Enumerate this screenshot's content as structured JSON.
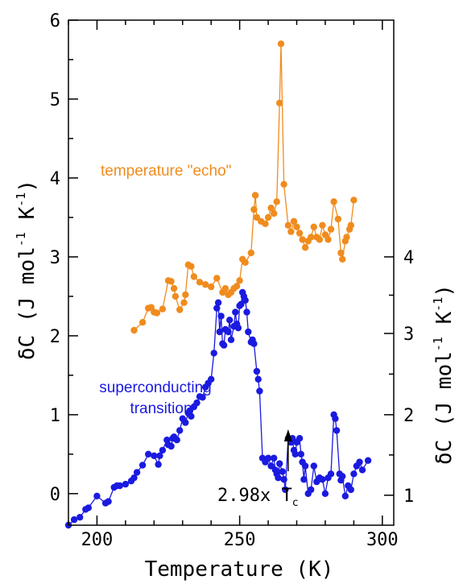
{
  "chart_data": {
    "type": "scatter",
    "title": "",
    "xlabel": "Temperature (K)",
    "ylabel_left": "δC (J mol-1 K-1)",
    "ylabel_right": "δC (J mol-1 K-1)",
    "xlim": [
      190,
      304
    ],
    "ylim_left": [
      -0.4,
      6.0
    ],
    "ylim_right_ticks": [
      {
        "label": "1",
        "left_value": -0.02
      },
      {
        "label": "2",
        "left_value": 1.0
      },
      {
        "label": "3",
        "left_value": 2.03
      },
      {
        "label": "4",
        "left_value": 3.0
      }
    ],
    "x_ticks": [
      200,
      250,
      300
    ],
    "y_ticks": [
      0,
      1,
      2,
      3,
      4,
      5,
      6
    ],
    "annotations": {
      "echo_label": "temperature \"echo\"",
      "sc_label_line1": "superconducting",
      "sc_label_line2": "transition",
      "tc_label": "2.98x T",
      "tc_sub": "c",
      "arrow_x": 267
    },
    "colors": {
      "echo": "#f08c1e",
      "superconducting": "#1a1ae0"
    },
    "series": [
      {
        "name": "temperature \"echo\"",
        "color": "#f08c1e",
        "points": [
          [
            213,
            2.07
          ],
          [
            216,
            2.17
          ],
          [
            218,
            2.35
          ],
          [
            219,
            2.36
          ],
          [
            220,
            2.3
          ],
          [
            221,
            2.29
          ],
          [
            223,
            2.34
          ],
          [
            225,
            2.7
          ],
          [
            226,
            2.69
          ],
          [
            227,
            2.6
          ],
          [
            227.5,
            2.5
          ],
          [
            229,
            2.33
          ],
          [
            230.5,
            2.42
          ],
          [
            231,
            2.52
          ],
          [
            232,
            2.9
          ],
          [
            233,
            2.88
          ],
          [
            234,
            2.75
          ],
          [
            236,
            2.68
          ],
          [
            238,
            2.65
          ],
          [
            240,
            2.62
          ],
          [
            242,
            2.73
          ],
          [
            244,
            2.55
          ],
          [
            245,
            2.6
          ],
          [
            246,
            2.52
          ],
          [
            247,
            2.55
          ],
          [
            248,
            2.6
          ],
          [
            249,
            2.63
          ],
          [
            250,
            2.7
          ],
          [
            251,
            2.97
          ],
          [
            252,
            2.93
          ],
          [
            254,
            3.05
          ],
          [
            255,
            3.6
          ],
          [
            255.5,
            3.78
          ],
          [
            256,
            3.5
          ],
          [
            257.5,
            3.45
          ],
          [
            259,
            3.42
          ],
          [
            260,
            3.5
          ],
          [
            261,
            3.62
          ],
          [
            262,
            3.55
          ],
          [
            263,
            3.7
          ],
          [
            264,
            4.95
          ],
          [
            264.5,
            5.7
          ],
          [
            265.5,
            3.92
          ],
          [
            267,
            3.4
          ],
          [
            268,
            3.32
          ],
          [
            269,
            3.45
          ],
          [
            270,
            3.38
          ],
          [
            271,
            3.3
          ],
          [
            272,
            3.22
          ],
          [
            273,
            3.12
          ],
          [
            274,
            3.2
          ],
          [
            275,
            3.25
          ],
          [
            276,
            3.38
          ],
          [
            277,
            3.25
          ],
          [
            278,
            3.22
          ],
          [
            279,
            3.4
          ],
          [
            280,
            3.28
          ],
          [
            281,
            3.22
          ],
          [
            282,
            3.35
          ],
          [
            283,
            3.7
          ],
          [
            284.5,
            3.48
          ],
          [
            285.5,
            3.05
          ],
          [
            286,
            2.97
          ],
          [
            287,
            3.2
          ],
          [
            287.5,
            3.25
          ],
          [
            288.5,
            3.35
          ],
          [
            289,
            3.4
          ],
          [
            290,
            3.72
          ]
        ]
      },
      {
        "name": "superconducting transition",
        "color": "#1a1ae0",
        "points": [
          [
            190,
            -0.4
          ],
          [
            192,
            -0.33
          ],
          [
            194,
            -0.3
          ],
          [
            196,
            -0.2
          ],
          [
            197,
            -0.18
          ],
          [
            200,
            -0.03
          ],
          [
            203,
            -0.12
          ],
          [
            204,
            -0.1
          ],
          [
            206,
            0.08
          ],
          [
            207,
            0.1
          ],
          [
            208,
            0.1
          ],
          [
            210,
            0.12
          ],
          [
            212,
            0.16
          ],
          [
            213,
            0.2
          ],
          [
            214,
            0.27
          ],
          [
            216,
            0.36
          ],
          [
            218,
            0.5
          ],
          [
            220,
            0.48
          ],
          [
            221.5,
            0.37
          ],
          [
            222,
            0.48
          ],
          [
            223,
            0.55
          ],
          [
            224.5,
            0.68
          ],
          [
            225,
            0.62
          ],
          [
            226,
            0.6
          ],
          [
            226.5,
            0.7
          ],
          [
            227,
            0.72
          ],
          [
            228,
            0.68
          ],
          [
            229,
            0.8
          ],
          [
            230,
            0.95
          ],
          [
            231,
            0.9
          ],
          [
            232,
            1.02
          ],
          [
            232.5,
            1.05
          ],
          [
            233,
            0.98
          ],
          [
            234,
            1.1
          ],
          [
            235,
            1.15
          ],
          [
            236,
            1.23
          ],
          [
            237,
            1.22
          ],
          [
            238,
            1.35
          ],
          [
            239,
            1.4
          ],
          [
            240,
            1.45
          ],
          [
            241,
            1.78
          ],
          [
            242,
            2.35
          ],
          [
            242.5,
            2.42
          ],
          [
            243,
            2.05
          ],
          [
            243.5,
            2.25
          ],
          [
            244,
            1.9
          ],
          [
            244.5,
            1.88
          ],
          [
            245,
            2.08
          ],
          [
            246,
            2.05
          ],
          [
            246.5,
            2.2
          ],
          [
            247,
            1.95
          ],
          [
            248,
            2.12
          ],
          [
            248.5,
            2.3
          ],
          [
            249,
            2.15
          ],
          [
            249.5,
            2.1
          ],
          [
            250,
            2.38
          ],
          [
            250.5,
            2.4
          ],
          [
            251,
            2.55
          ],
          [
            251.5,
            2.5
          ],
          [
            252,
            2.45
          ],
          [
            252.5,
            2.3
          ],
          [
            253,
            2.05
          ],
          [
            254,
            1.92
          ],
          [
            254.5,
            1.95
          ],
          [
            255,
            1.9
          ],
          [
            256,
            1.55
          ],
          [
            256.5,
            1.45
          ],
          [
            257,
            1.3
          ],
          [
            258,
            0.45
          ],
          [
            259,
            0.4
          ],
          [
            260,
            0.45
          ],
          [
            261,
            0.35
          ],
          [
            262,
            0.45
          ],
          [
            262.5,
            0.3
          ],
          [
            263,
            0.25
          ],
          [
            263.5,
            0.2
          ],
          [
            264,
            0.38
          ],
          [
            265,
            0.28
          ],
          [
            265.5,
            0.18
          ],
          [
            266,
            0.05
          ],
          [
            267,
            0.7
          ],
          [
            268,
            0.65
          ],
          [
            268.5,
            0.7
          ],
          [
            269,
            0.55
          ],
          [
            269.5,
            0.5
          ],
          [
            270,
            0.65
          ],
          [
            271,
            0.7
          ],
          [
            271.5,
            0.5
          ],
          [
            272,
            0.4
          ],
          [
            272.5,
            0.18
          ],
          [
            273,
            0.35
          ],
          [
            274,
            0.0
          ],
          [
            275,
            0.05
          ],
          [
            276,
            0.35
          ],
          [
            277,
            0.15
          ],
          [
            278,
            0.2
          ],
          [
            279,
            0.18
          ],
          [
            280,
            0.0
          ],
          [
            281,
            0.2
          ],
          [
            282,
            0.25
          ],
          [
            283,
            1.0
          ],
          [
            283.5,
            0.95
          ],
          [
            284,
            0.8
          ],
          [
            285,
            0.25
          ],
          [
            285.5,
            0.17
          ],
          [
            286,
            0.22
          ],
          [
            287,
            -0.03
          ],
          [
            288,
            0.1
          ],
          [
            289,
            0.05
          ],
          [
            290,
            0.25
          ],
          [
            291,
            0.35
          ],
          [
            292,
            0.4
          ],
          [
            293,
            0.3
          ],
          [
            295,
            0.42
          ]
        ]
      }
    ]
  }
}
